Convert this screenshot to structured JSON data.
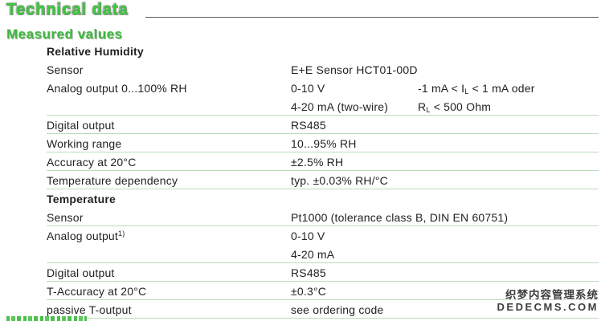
{
  "page": {
    "title": "Technical data",
    "section_heading": "Measured values"
  },
  "table": {
    "groups": [
      {
        "heading": "Relative Humidity",
        "rows": [
          {
            "label": "Sensor",
            "value": "E+E Sensor HCT01-00D",
            "line": false
          },
          {
            "label": "Analog output 0...100% RH",
            "value": "0-10 V",
            "note_pre": "-1 mA < I",
            "note_sub": "L",
            "note_post": " < 1 mA oder",
            "line": false
          },
          {
            "label": "",
            "value": "4-20 mA (two-wire)",
            "note_pre": "R",
            "note_sub": "L",
            "note_post": " < 500 Ohm",
            "line": true
          },
          {
            "label": "Digital output",
            "value": "RS485",
            "line": true
          },
          {
            "label": "Working range",
            "value": "10...95% RH",
            "line": true
          },
          {
            "label": "Accuracy at 20°C",
            "value": "±2.5% RH",
            "line": true
          },
          {
            "label": "Temperature dependency",
            "value": "typ. ±0.03% RH/°C",
            "line": true
          }
        ]
      },
      {
        "heading": "Temperature",
        "rows": [
          {
            "label": "Sensor",
            "value": "Pt1000 (tolerance class B, DIN EN 60751)",
            "line": true
          },
          {
            "label": "Analog output",
            "label_sup": "1)",
            "value": "0-10 V",
            "line": false
          },
          {
            "label": "",
            "value": "4-20 mA",
            "line": true
          },
          {
            "label": "Digital output",
            "value": "RS485",
            "line": true
          },
          {
            "label": "T-Accuracy at 20°C",
            "value": "±0.3°C",
            "line": true
          },
          {
            "label": "passive T-output",
            "value": "see ordering code",
            "line": true
          }
        ]
      }
    ]
  },
  "watermark": {
    "line1": "织梦内容管理系统",
    "line2": "DEDECMS.COM"
  },
  "colors": {
    "title_green": "#35cc35",
    "section_green": "#3cb83c",
    "line_green": "#b9dcb9"
  }
}
